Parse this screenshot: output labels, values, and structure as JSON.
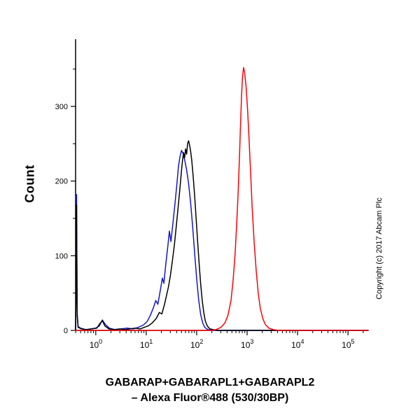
{
  "figure": {
    "ylabel": "Count",
    "copyright": "Copyright (c) 2017 Abcam Plc",
    "caption_line1": "GABARAP+GABARAPL1+GABARAPL2",
    "caption_line2": "– Alexa Fluor®488 (530/30BP)"
  },
  "chart_data": {
    "type": "line",
    "subtype": "flow-cytometry-histogram",
    "title": "",
    "xlabel": "GABARAP+GABARAPL1+GABARAPL2 – Alexa Fluor®488 (530/30BP)",
    "ylabel": "Count",
    "x_scale": "log10",
    "xlim_log10": [
      -0.4,
      5.4
    ],
    "ylim": [
      0,
      390
    ],
    "y_major_ticks": [
      0,
      100,
      200,
      300
    ],
    "y_minor_tick_step": 50,
    "x_major_tick_exponents": [
      0,
      1,
      2,
      3,
      4,
      5
    ],
    "grid": false,
    "legend_position": "none",
    "axis_color": "#000000",
    "series": [
      {
        "name": "blue-control-curve",
        "color": "#1515cc",
        "points": [
          [
            -0.4,
            0
          ],
          [
            -0.39,
            80
          ],
          [
            -0.38,
            182
          ],
          [
            -0.37,
            24
          ],
          [
            -0.35,
            5
          ],
          [
            -0.3,
            3
          ],
          [
            -0.2,
            1
          ],
          [
            -0.1,
            2
          ],
          [
            0.0,
            3
          ],
          [
            0.07,
            6
          ],
          [
            0.13,
            14
          ],
          [
            0.19,
            8
          ],
          [
            0.27,
            3
          ],
          [
            0.38,
            1
          ],
          [
            0.5,
            2
          ],
          [
            0.62,
            3
          ],
          [
            0.74,
            2
          ],
          [
            0.84,
            4
          ],
          [
            0.94,
            7
          ],
          [
            1.02,
            12
          ],
          [
            1.08,
            20
          ],
          [
            1.14,
            30
          ],
          [
            1.19,
            40
          ],
          [
            1.23,
            35
          ],
          [
            1.28,
            54
          ],
          [
            1.32,
            70
          ],
          [
            1.35,
            63
          ],
          [
            1.39,
            90
          ],
          [
            1.43,
            114
          ],
          [
            1.46,
            133
          ],
          [
            1.49,
            119
          ],
          [
            1.53,
            144
          ],
          [
            1.57,
            170
          ],
          [
            1.61,
            198
          ],
          [
            1.64,
            220
          ],
          [
            1.67,
            233
          ],
          [
            1.7,
            241
          ],
          [
            1.73,
            237
          ],
          [
            1.76,
            229
          ],
          [
            1.8,
            215
          ],
          [
            1.84,
            197
          ],
          [
            1.88,
            171
          ],
          [
            1.92,
            139
          ],
          [
            1.96,
            103
          ],
          [
            2.0,
            69
          ],
          [
            2.04,
            41
          ],
          [
            2.08,
            21
          ],
          [
            2.12,
            10
          ],
          [
            2.16,
            4
          ],
          [
            2.22,
            1
          ],
          [
            2.3,
            0
          ],
          [
            5.4,
            0
          ]
        ]
      },
      {
        "name": "black-control-curve",
        "color": "#000000",
        "points": [
          [
            -0.4,
            0
          ],
          [
            -0.39,
            60
          ],
          [
            -0.38,
            168
          ],
          [
            -0.37,
            20
          ],
          [
            -0.35,
            4
          ],
          [
            -0.28,
            2
          ],
          [
            -0.18,
            1
          ],
          [
            -0.08,
            2
          ],
          [
            0.02,
            3
          ],
          [
            0.08,
            9
          ],
          [
            0.13,
            13
          ],
          [
            0.18,
            6
          ],
          [
            0.26,
            2
          ],
          [
            0.36,
            1
          ],
          [
            0.48,
            2
          ],
          [
            0.58,
            1
          ],
          [
            0.68,
            2
          ],
          [
            0.78,
            3
          ],
          [
            0.88,
            2
          ],
          [
            0.96,
            4
          ],
          [
            1.04,
            6
          ],
          [
            1.12,
            10
          ],
          [
            1.2,
            16
          ],
          [
            1.26,
            24
          ],
          [
            1.31,
            22
          ],
          [
            1.36,
            34
          ],
          [
            1.4,
            46
          ],
          [
            1.44,
            58
          ],
          [
            1.48,
            74
          ],
          [
            1.52,
            94
          ],
          [
            1.56,
            116
          ],
          [
            1.6,
            142
          ],
          [
            1.64,
            170
          ],
          [
            1.67,
            192
          ],
          [
            1.7,
            214
          ],
          [
            1.72,
            228
          ],
          [
            1.74,
            238
          ],
          [
            1.76,
            231
          ],
          [
            1.78,
            243
          ],
          [
            1.8,
            236
          ],
          [
            1.82,
            250
          ],
          [
            1.84,
            254
          ],
          [
            1.86,
            248
          ],
          [
            1.88,
            240
          ],
          [
            1.9,
            229
          ],
          [
            1.93,
            207
          ],
          [
            1.96,
            180
          ],
          [
            1.99,
            150
          ],
          [
            2.02,
            118
          ],
          [
            2.05,
            88
          ],
          [
            2.08,
            62
          ],
          [
            2.11,
            40
          ],
          [
            2.14,
            24
          ],
          [
            2.17,
            13
          ],
          [
            2.21,
            6
          ],
          [
            2.26,
            2
          ],
          [
            2.33,
            1
          ],
          [
            2.42,
            0
          ],
          [
            5.4,
            0
          ]
        ]
      },
      {
        "name": "red-sample-curve",
        "color": "#fb0207",
        "points": [
          [
            -0.4,
            0
          ],
          [
            2.28,
            0
          ],
          [
            2.38,
            1
          ],
          [
            2.48,
            4
          ],
          [
            2.56,
            10
          ],
          [
            2.62,
            20
          ],
          [
            2.68,
            40
          ],
          [
            2.72,
            66
          ],
          [
            2.76,
            100
          ],
          [
            2.79,
            138
          ],
          [
            2.82,
            182
          ],
          [
            2.85,
            235
          ],
          [
            2.87,
            278
          ],
          [
            2.89,
            315
          ],
          [
            2.91,
            340
          ],
          [
            2.93,
            352
          ],
          [
            2.95,
            346
          ],
          [
            2.98,
            326
          ],
          [
            3.01,
            294
          ],
          [
            3.04,
            254
          ],
          [
            3.07,
            210
          ],
          [
            3.1,
            165
          ],
          [
            3.14,
            118
          ],
          [
            3.18,
            80
          ],
          [
            3.22,
            50
          ],
          [
            3.26,
            30
          ],
          [
            3.31,
            16
          ],
          [
            3.36,
            8
          ],
          [
            3.43,
            3
          ],
          [
            3.52,
            1
          ],
          [
            3.62,
            0
          ],
          [
            5.4,
            0
          ]
        ]
      }
    ]
  }
}
